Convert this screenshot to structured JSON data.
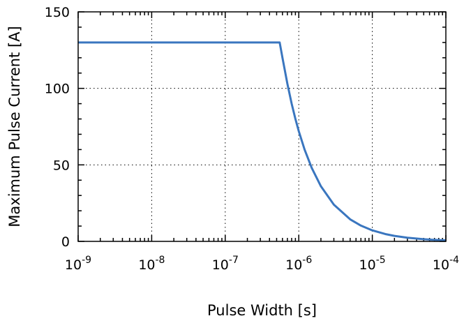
{
  "chart_data": {
    "type": "line",
    "xlabel": "Pulse Width [s]",
    "ylabel": "Maximum Pulse Current [A]",
    "xscale": "log",
    "xlim": [
      1e-09,
      0.0001
    ],
    "ylim": [
      0,
      150
    ],
    "grid": true,
    "x_ticks": [
      {
        "value": 1e-09,
        "base": "10",
        "exp": "-9"
      },
      {
        "value": 1e-08,
        "base": "10",
        "exp": "-8"
      },
      {
        "value": 1e-07,
        "base": "10",
        "exp": "-7"
      },
      {
        "value": 1e-06,
        "base": "10",
        "exp": "-6"
      },
      {
        "value": 1e-05,
        "base": "10",
        "exp": "-5"
      },
      {
        "value": 0.0001,
        "base": "10",
        "exp": "-4"
      }
    ],
    "y_ticks": [
      {
        "value": 0,
        "label": "0"
      },
      {
        "value": 50,
        "label": "50"
      },
      {
        "value": 100,
        "label": "100"
      },
      {
        "value": 150,
        "label": "150"
      }
    ],
    "series": [
      {
        "color": "#3a76bf",
        "x": [
          1e-09,
          5.5e-07,
          6e-07,
          7e-07,
          8e-07,
          9e-07,
          1e-06,
          1.2e-06,
          1.5e-06,
          2e-06,
          3e-06,
          5e-06,
          7e-06,
          1e-05,
          1.5e-05,
          2e-05,
          3e-05,
          5e-05,
          7e-05,
          0.0001
        ],
        "y": [
          130,
          130,
          120,
          103,
          90,
          80,
          72,
          60,
          48,
          36,
          24,
          14.4,
          10.3,
          7.2,
          4.8,
          3.6,
          2.4,
          1.44,
          1.0,
          0.7
        ]
      }
    ]
  }
}
